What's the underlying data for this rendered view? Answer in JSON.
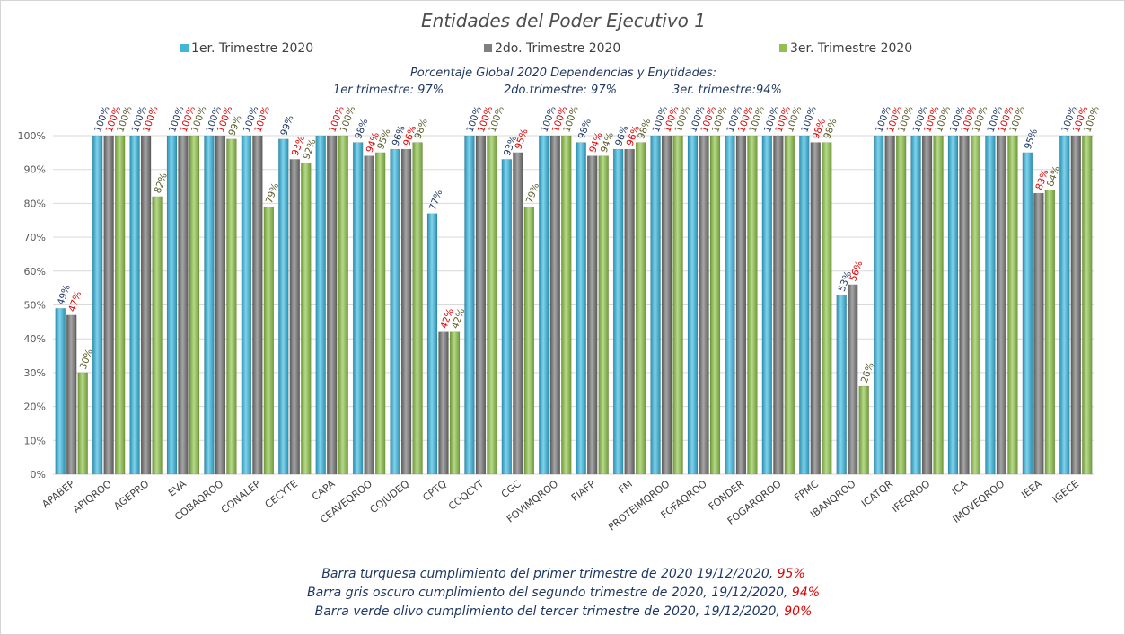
{
  "chart_data": {
    "type": "bar",
    "title": "Entidades del Poder Ejecutivo 1",
    "notes": {
      "line1": "Porcentaje Global 2020 Dependencias y Enytidades:",
      "line2a": "1er trimestre: 97%",
      "line2b": "2do.trimestre: 97%",
      "line2c": "3er. trimestre:94%"
    },
    "categories": [
      "APABEP",
      "APIQROO",
      "AGEPRO",
      "EVA",
      "COBAQROO",
      "CONALEP",
      "CECYTE",
      "CAPA",
      "CEAVEQROO",
      "COJUDEQ",
      "CPTQ",
      "COQCYT",
      "CGC",
      "FOVIMQROO",
      "FIAFP",
      "FM",
      "PROTEIMQROO",
      "FOFAQROO",
      "FONDER",
      "FOGARQROO",
      "FPMC",
      "IBANQROO",
      "ICATQR",
      "IFEQROO",
      "ICA",
      "IMOVEQROO",
      "IEEA",
      "IGECE"
    ],
    "series": [
      {
        "name": "1er. Trimestre 2020",
        "color": "#41b6d9",
        "label_color": "#1f3864",
        "values": [
          49,
          100,
          100,
          100,
          100,
          100,
          99,
          100,
          98,
          96,
          77,
          100,
          93,
          100,
          98,
          96,
          100,
          100,
          100,
          100,
          100,
          53,
          100,
          100,
          100,
          100,
          95,
          100
        ],
        "labels": [
          "49%",
          "100%",
          "100%",
          "100%",
          "100%",
          "100%",
          "99%",
          "",
          "98%",
          "96%",
          "77%",
          "100%",
          "93%",
          "100%",
          "98%",
          "96%",
          "100%",
          "100%",
          "100%",
          "100%",
          "100%",
          "53%",
          "100%",
          "100%",
          "100%",
          "100%",
          "95%",
          "100%"
        ]
      },
      {
        "name": "2do. Trimestre 2020",
        "color": "#7f7f7f",
        "label_color": "#e00000",
        "values": [
          47,
          100,
          100,
          100,
          100,
          100,
          93,
          100,
          94,
          96,
          42,
          100,
          95,
          100,
          94,
          96,
          100,
          100,
          100,
          100,
          98,
          56,
          100,
          100,
          100,
          100,
          83,
          100
        ],
        "labels": [
          "47%",
          "100%",
          "100%",
          "100%",
          "100%",
          "100%",
          "93%",
          "100%",
          "94%",
          "96%",
          "42%",
          "100%",
          "95%",
          "100%",
          "94%",
          "96%",
          "100%",
          "100%",
          "100%",
          "100%",
          "98%",
          "56%",
          "100%",
          "100%",
          "100%",
          "100%",
          "83%",
          "100%"
        ]
      },
      {
        "name": "3er. Trimestre 2020",
        "color": "#92c050",
        "label_color": "#5a5a2a",
        "values": [
          30,
          100,
          82,
          100,
          99,
          79,
          92,
          100,
          95,
          98,
          42,
          100,
          79,
          100,
          94,
          98,
          100,
          100,
          100,
          100,
          98,
          26,
          100,
          100,
          100,
          100,
          84,
          100
        ],
        "labels": [
          "30%",
          "100%",
          "82%",
          "100%",
          "99%",
          "79%",
          "92%",
          "100%",
          "95%",
          "98%",
          "42%",
          "100%",
          "79%",
          "100%",
          "94%",
          "98%",
          "100%",
          "100%",
          "100%",
          "100%",
          "98%",
          "26%",
          "100%",
          "100%",
          "100%",
          "100%",
          "84%",
          "100%"
        ]
      }
    ],
    "ylim": [
      0,
      100
    ],
    "yticks": [
      "0%",
      "10%",
      "20%",
      "30%",
      "40%",
      "50%",
      "60%",
      "70%",
      "80%",
      "90%",
      "100%"
    ],
    "grid": true,
    "legend": "top"
  },
  "footnotes": [
    {
      "text": "Barra turquesa  cumplimiento del primer trimestre de 2020   19/12/2020, ",
      "pct": "95%"
    },
    {
      "text": "Barra gris oscuro  cumplimiento del segundo trimestre de 2020,  19/12/2020, ",
      "pct": "94%"
    },
    {
      "text": "Barra verde olivo  cumplimiento del tercer trimestre de 2020,  19/12/2020, ",
      "pct": "90%"
    }
  ]
}
